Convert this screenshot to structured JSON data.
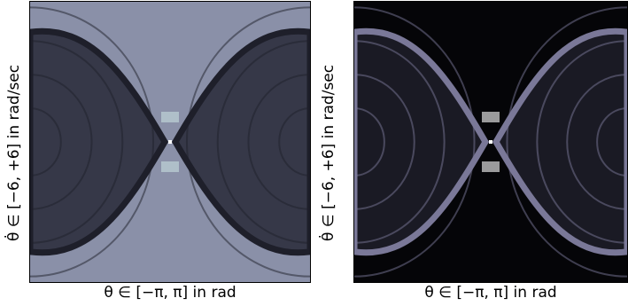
{
  "chart_data": [
    {
      "type": "heatmap",
      "xlabel": "θ ∈ [−π, π] in rad",
      "ylabel": "θ̇ ∈ [−6, +6] in rad/sec",
      "xlim": [
        -3.14159,
        3.14159
      ],
      "ylim": [
        -6,
        6
      ],
      "colormap": "bone",
      "background_color": "#8a90a8",
      "separatrix_color": "#1e1f2a",
      "bowl_color": "#363848",
      "highlight_color": "#c8e0e0"
    },
    {
      "type": "heatmap",
      "xlabel": "θ ∈ [−π, π] in rad",
      "ylabel": "θ̇ ∈ [−6, +6] in rad/sec",
      "xlim": [
        -3.14159,
        3.14159
      ],
      "ylim": [
        -6,
        6
      ],
      "colormap": "bone",
      "background_color": "#050508",
      "separatrix_color": "#7a7898",
      "bowl_color": "#1a1a24",
      "highlight_color": "#ffffff"
    }
  ]
}
